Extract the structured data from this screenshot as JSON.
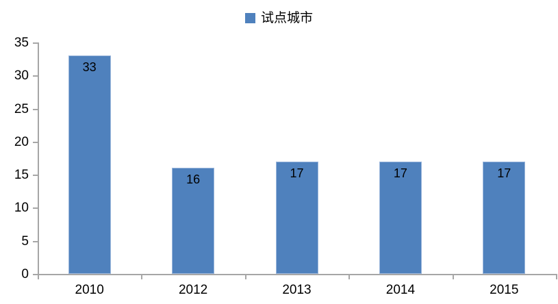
{
  "chart_data": {
    "type": "bar",
    "title": "",
    "legend": "试点城市",
    "legend_position": "top-center",
    "series": [
      {
        "name": "试点城市",
        "values": [
          33,
          16,
          17,
          17,
          17
        ]
      }
    ],
    "categories": [
      "2010",
      "2012",
      "2013",
      "2014",
      "2015"
    ],
    "data_labels": [
      "33",
      "16",
      "17",
      "17",
      "17"
    ],
    "xlabel": "",
    "ylabel": "",
    "ylim": [
      0,
      35
    ],
    "ytick_step": 5,
    "yticks": [
      "0",
      "5",
      "10",
      "15",
      "20",
      "25",
      "30",
      "35"
    ],
    "grid": false,
    "colors": {
      "bar_fill": "#4F81BD",
      "bar_edge": "#9DB8DC",
      "axis": "#A6A6A6",
      "text": "#000000",
      "background": "#FFFFFF"
    }
  }
}
